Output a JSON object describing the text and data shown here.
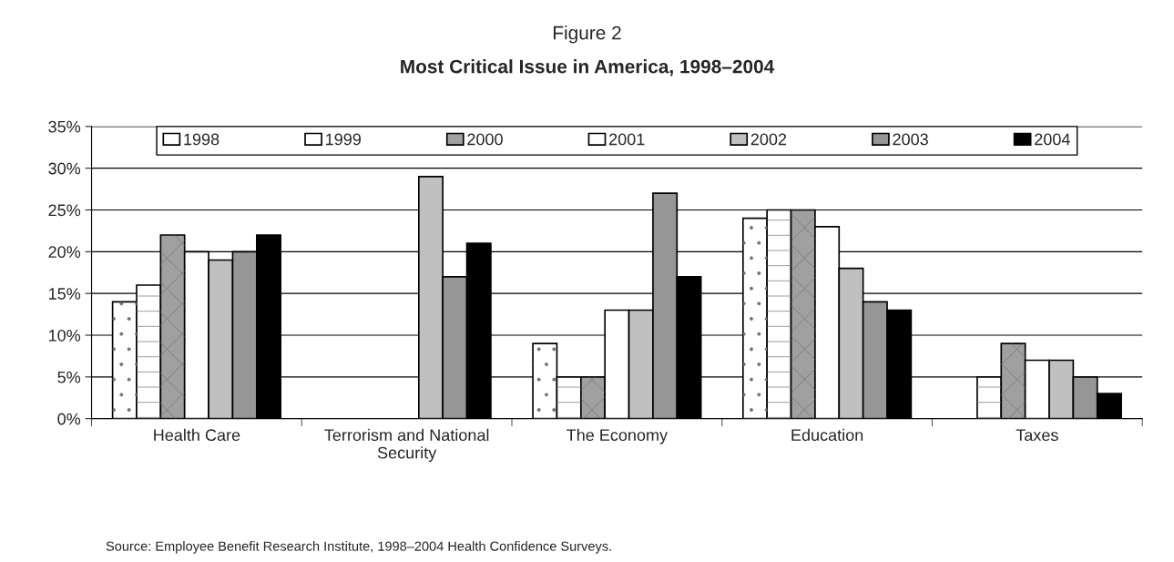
{
  "chart_data": {
    "type": "bar",
    "title": "Figure 2",
    "subtitle": "Most Critical Issue in America, 1998–2004",
    "categories": [
      "Health Care",
      "Terrorism and National\nSecurity",
      "The Economy",
      "Education",
      "Taxes"
    ],
    "series": [
      {
        "name": "1998",
        "color": "#ffffff",
        "values": [
          14,
          null,
          9,
          24,
          null
        ]
      },
      {
        "name": "1999",
        "color": "#ffffff",
        "values": [
          16,
          null,
          5,
          25,
          5
        ]
      },
      {
        "name": "2000",
        "color": "#a0a0a0",
        "values": [
          22,
          null,
          5,
          25,
          9
        ]
      },
      {
        "name": "2001",
        "color": "#ffffff",
        "values": [
          20,
          null,
          13,
          23,
          7
        ]
      },
      {
        "name": "2002",
        "color": "#c0c0c0",
        "values": [
          19,
          29,
          13,
          18,
          7
        ]
      },
      {
        "name": "2003",
        "color": "#969696",
        "values": [
          20,
          17,
          27,
          14,
          5
        ]
      },
      {
        "name": "2004",
        "color": "#000000",
        "values": [
          22,
          21,
          17,
          13,
          3
        ]
      }
    ],
    "ylim": [
      0,
      35
    ],
    "yticks": [
      {
        "value": 0,
        "label": "0%"
      },
      {
        "value": 5,
        "label": "5%"
      },
      {
        "value": 10,
        "label": "10%"
      },
      {
        "value": 15,
        "label": "15%"
      },
      {
        "value": 20,
        "label": "20%"
      },
      {
        "value": 25,
        "label": "25%"
      },
      {
        "value": 30,
        "label": "30%"
      },
      {
        "value": 35,
        "label": "35%"
      }
    ],
    "grid": "y",
    "legend": "top",
    "annotations": [
      "Source: Employee Benefit Research Institute, 1998–2004 Health Confidence Surveys."
    ]
  }
}
